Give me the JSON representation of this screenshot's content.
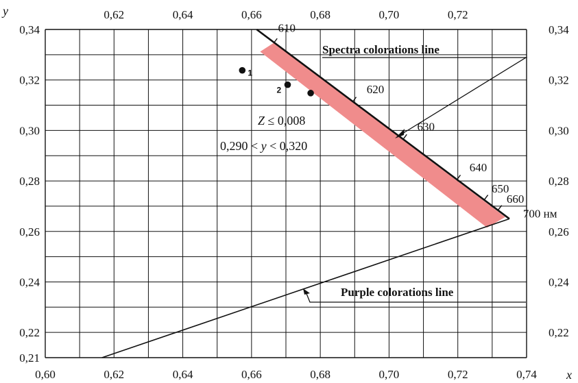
{
  "chart_data": {
    "type": "line",
    "xlabel": "x",
    "ylabel": "y",
    "xlim": [
      0.6,
      0.74
    ],
    "ylim": [
      0.21,
      0.34
    ],
    "x_ticks": [
      0.6,
      0.62,
      0.64,
      0.66,
      0.68,
      0.7,
      0.72,
      0.74
    ],
    "x_tick_labels": [
      "0,60",
      "0,62",
      "0,64",
      "0,66",
      "0,68",
      "0,70",
      "0,72",
      "0,74"
    ],
    "x_top_ticks": [
      0.62,
      0.64,
      0.66,
      0.68,
      0.7,
      0.72
    ],
    "x_top_tick_labels": [
      "0,62",
      "0,64",
      "0,66",
      "0,68",
      "0,70",
      "0,72"
    ],
    "y_left_ticks": [
      0.34,
      0.32,
      0.3,
      0.28,
      0.26,
      0.24,
      0.22,
      0.21
    ],
    "y_left_tick_labels": [
      "0,34",
      "0,32",
      "0,30",
      "0,28",
      "0,26",
      "0,24",
      "0,22",
      "0,21"
    ],
    "y_right_ticks": [
      0.34,
      0.32,
      0.3,
      0.28,
      0.26,
      0.24,
      0.22
    ],
    "y_right_tick_labels": [
      "0,34",
      "0,32",
      "0,30",
      "0,28",
      "0,26",
      "0,24",
      "0,22"
    ],
    "grid": true,
    "grid_x": [
      0.6,
      0.61,
      0.62,
      0.63,
      0.64,
      0.65,
      0.66,
      0.67,
      0.68,
      0.69,
      0.7,
      0.71,
      0.72,
      0.73,
      0.74
    ],
    "grid_y": [
      0.21,
      0.22,
      0.23,
      0.24,
      0.25,
      0.26,
      0.27,
      0.28,
      0.29,
      0.3,
      0.31,
      0.32,
      0.33,
      0.34
    ],
    "spectral_locus": {
      "points": [
        {
          "x": 0.6615,
          "y": 0.34
        },
        {
          "x": 0.735,
          "y": 0.265
        }
      ],
      "wavelength_marks": [
        {
          "label": "610",
          "x": 0.6665,
          "y": 0.3347
        },
        {
          "label": "620",
          "x": 0.6895,
          "y": 0.3115
        },
        {
          "label": "630",
          "x": 0.7042,
          "y": 0.2967
        },
        {
          "label": "640",
          "x": 0.7198,
          "y": 0.2806
        },
        {
          "label": "650",
          "x": 0.7278,
          "y": 0.2727
        },
        {
          "label": "660",
          "x": 0.7318,
          "y": 0.2686
        },
        {
          "label": "700 нм",
          "x": 0.735,
          "y": 0.265
        }
      ]
    },
    "purple_line": {
      "points": [
        {
          "x": 0.6165,
          "y": 0.21
        },
        {
          "x": 0.735,
          "y": 0.265
        }
      ]
    },
    "band": {
      "polygon": [
        {
          "x": 0.6625,
          "y": 0.3312
        },
        {
          "x": 0.6665,
          "y": 0.3347
        },
        {
          "x": 0.7338,
          "y": 0.2657
        },
        {
          "x": 0.7285,
          "y": 0.2615
        }
      ],
      "color": "#f08c8c"
    },
    "points": [
      {
        "label": "1",
        "x": 0.6573,
        "y": 0.3238
      },
      {
        "label": "2",
        "x": 0.6705,
        "y": 0.3181
      },
      {
        "label": "",
        "x": 0.6772,
        "y": 0.3148
      }
    ],
    "annotations": {
      "spectra_label": "Spectra colorations line",
      "purple_label": "Purple colorations line",
      "z_condition": "Z ≤ 0,008",
      "y_condition": "0,290 < y < 0,320"
    },
    "colors": {
      "band": "#f08c8c",
      "line": "#111111",
      "grid": "#111111"
    }
  }
}
